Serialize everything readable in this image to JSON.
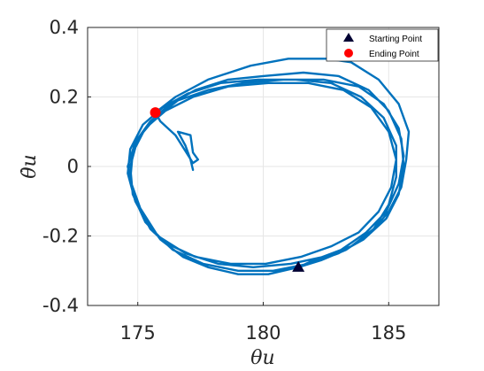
{
  "chart_data": {
    "type": "line",
    "xlabel": "θu",
    "ylabel": "θ̇u",
    "xlim": [
      173,
      187
    ],
    "ylim": [
      -0.4,
      0.4
    ],
    "x_ticks": [
      175,
      180,
      185
    ],
    "y_ticks": [
      -0.4,
      -0.2,
      0,
      0.2,
      0.4
    ],
    "x_tick_labels": [
      "175",
      "180",
      "185"
    ],
    "y_tick_labels": [
      "-0.4",
      "-0.2",
      "0",
      "0.2",
      "0.4"
    ],
    "grid": true,
    "legend_position": "top-right",
    "colors": {
      "trajectory": "#0072BD",
      "start_marker": "#000033",
      "end_marker": "#ff0000",
      "axes": "#262626",
      "grid": "#e6e6e6"
    },
    "legend": [
      {
        "label": "Starting Point",
        "marker": "triangle"
      },
      {
        "label": "Ending Point",
        "marker": "circle"
      }
    ],
    "start_point": {
      "x": 181.4,
      "y": -0.29
    },
    "end_point": {
      "x": 175.7,
      "y": 0.155
    },
    "series": [
      {
        "values_xy": [
          [
            177.2,
            -0.01
          ],
          [
            177.1,
            0.02
          ],
          [
            176.9,
            0.06
          ],
          [
            176.6,
            0.1
          ],
          [
            177.1,
            0.09
          ],
          [
            177.2,
            0.04
          ],
          [
            177.4,
            0.02
          ],
          [
            177.2,
            0.01
          ],
          [
            176.5,
            0.09
          ],
          [
            175.9,
            0.13
          ],
          [
            175.7,
            0.155
          ],
          [
            176.5,
            0.2
          ],
          [
            177.8,
            0.25
          ],
          [
            179.5,
            0.29
          ],
          [
            181.0,
            0.31
          ],
          [
            182.5,
            0.31
          ],
          [
            183.5,
            0.3
          ],
          [
            184.6,
            0.25
          ],
          [
            185.4,
            0.18
          ],
          [
            185.8,
            0.1
          ],
          [
            185.7,
            0.02
          ],
          [
            185.5,
            -0.06
          ],
          [
            185.0,
            -0.13
          ],
          [
            184.3,
            -0.19
          ],
          [
            183.3,
            -0.24
          ],
          [
            182.3,
            -0.27
          ],
          [
            181.4,
            -0.29
          ],
          [
            180.2,
            -0.31
          ],
          [
            179.0,
            -0.31
          ],
          [
            177.8,
            -0.29
          ],
          [
            176.8,
            -0.26
          ],
          [
            175.9,
            -0.21
          ],
          [
            175.2,
            -0.14
          ],
          [
            174.8,
            -0.07
          ],
          [
            174.6,
            0.0
          ],
          [
            174.9,
            0.07
          ],
          [
            175.5,
            0.13
          ],
          [
            176.3,
            0.18
          ],
          [
            177.3,
            0.22
          ],
          [
            178.6,
            0.25
          ],
          [
            180.0,
            0.26
          ],
          [
            181.6,
            0.27
          ],
          [
            183.0,
            0.26
          ],
          [
            184.2,
            0.22
          ],
          [
            185.0,
            0.16
          ],
          [
            185.5,
            0.08
          ],
          [
            185.6,
            0.0
          ],
          [
            185.4,
            -0.08
          ],
          [
            184.9,
            -0.15
          ],
          [
            184.0,
            -0.21
          ],
          [
            183.0,
            -0.25
          ],
          [
            181.8,
            -0.28
          ],
          [
            180.4,
            -0.3
          ],
          [
            179.0,
            -0.3
          ],
          [
            177.6,
            -0.28
          ],
          [
            176.4,
            -0.24
          ],
          [
            175.5,
            -0.18
          ],
          [
            174.9,
            -0.1
          ],
          [
            174.6,
            -0.02
          ],
          [
            174.7,
            0.05
          ],
          [
            175.2,
            0.12
          ],
          [
            176.0,
            0.17
          ],
          [
            177.0,
            0.21
          ],
          [
            178.3,
            0.24
          ],
          [
            179.8,
            0.25
          ],
          [
            181.3,
            0.25
          ],
          [
            182.7,
            0.24
          ],
          [
            183.9,
            0.2
          ],
          [
            184.8,
            0.14
          ],
          [
            185.3,
            0.06
          ],
          [
            185.3,
            -0.03
          ],
          [
            185.0,
            -0.11
          ],
          [
            184.4,
            -0.18
          ],
          [
            183.5,
            -0.23
          ],
          [
            182.4,
            -0.26
          ],
          [
            181.1,
            -0.28
          ],
          [
            179.6,
            -0.29
          ],
          [
            178.2,
            -0.28
          ],
          [
            176.9,
            -0.25
          ],
          [
            175.8,
            -0.2
          ],
          [
            175.1,
            -0.12
          ],
          [
            174.7,
            -0.04
          ],
          [
            174.8,
            0.04
          ],
          [
            175.3,
            0.11
          ],
          [
            176.1,
            0.16
          ],
          [
            177.2,
            0.2
          ],
          [
            178.6,
            0.23
          ],
          [
            180.2,
            0.24
          ],
          [
            181.8,
            0.24
          ],
          [
            183.2,
            0.22
          ],
          [
            184.3,
            0.17
          ],
          [
            185.0,
            0.1
          ],
          [
            185.3,
            0.02
          ],
          [
            185.1,
            -0.06
          ],
          [
            184.6,
            -0.13
          ],
          [
            183.8,
            -0.19
          ],
          [
            182.7,
            -0.23
          ],
          [
            181.5,
            -0.26
          ],
          [
            180.1,
            -0.28
          ],
          [
            178.7,
            -0.28
          ],
          [
            177.3,
            -0.26
          ],
          [
            176.1,
            -0.22
          ],
          [
            175.3,
            -0.16
          ],
          [
            174.8,
            -0.08
          ],
          [
            174.7,
            0.0
          ],
          [
            175.0,
            0.08
          ],
          [
            175.7,
            0.14
          ],
          [
            176.6,
            0.19
          ],
          [
            177.8,
            0.22
          ],
          [
            179.2,
            0.24
          ],
          [
            180.8,
            0.25
          ],
          [
            182.4,
            0.25
          ],
          [
            183.8,
            0.23
          ],
          [
            184.8,
            0.18
          ],
          [
            185.4,
            0.11
          ],
          [
            185.6,
            0.03
          ],
          [
            185.4,
            -0.05
          ],
          [
            184.9,
            -0.13
          ],
          [
            184.1,
            -0.19
          ],
          [
            183.1,
            -0.24
          ],
          [
            182.0,
            -0.27
          ],
          [
            181.4,
            -0.29
          ]
        ]
      }
    ]
  }
}
